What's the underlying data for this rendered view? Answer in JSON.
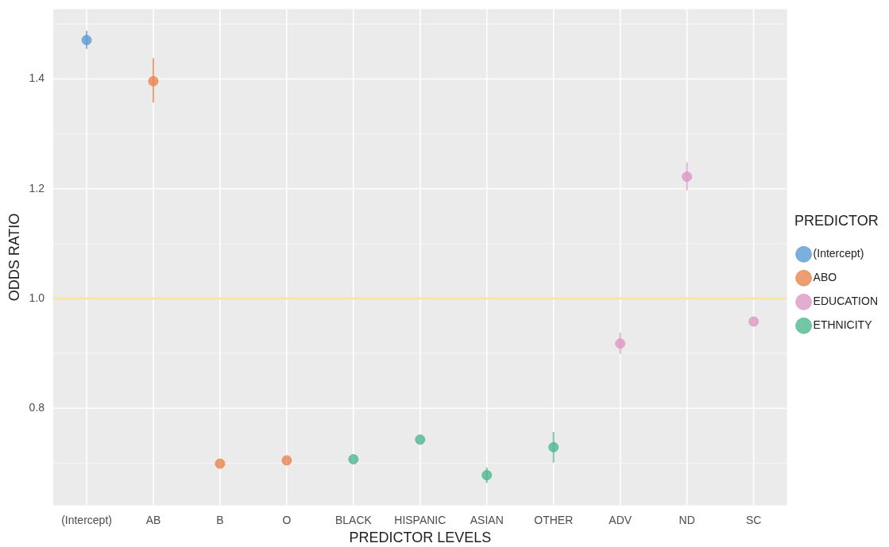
{
  "chart_data": {
    "type": "scatter",
    "xlabel": "PREDICTOR LEVELS",
    "ylabel": "ODDS RATIO",
    "legend_title": "PREDICTOR",
    "legend": "right",
    "grid": true,
    "marker": "circle",
    "categories": [
      "(Intercept)",
      "AB",
      "B",
      "O",
      "BLACK",
      "HISPANIC",
      "ASIAN",
      "OTHER",
      "ADV",
      "ND",
      "SC"
    ],
    "ylim": [
      0.623,
      1.5275
    ],
    "yticks": [
      {
        "value": 0.8,
        "label": "0.8"
      },
      {
        "value": 1,
        "label": "1.0"
      },
      {
        "value": 1.2,
        "label": "1.2"
      },
      {
        "value": 1.4,
        "label": "1.4"
      }
    ],
    "ref_lines": [
      {
        "axis": "y",
        "value": 1,
        "color": "#f6e8a8"
      }
    ],
    "series": [
      {
        "name": "(Intercept)",
        "color": "#5d9bd3",
        "x": [
          "(Intercept)"
        ],
        "values": [
          1.471
        ],
        "errors": [
          [
            1.455,
            1.488
          ]
        ]
      },
      {
        "name": "ABO",
        "color": "#e8854d",
        "x": [
          "AB",
          "B",
          "O"
        ],
        "values": [
          1.396,
          0.699,
          0.705
        ],
        "errors": [
          [
            1.357,
            1.438
          ],
          null,
          null
        ]
      },
      {
        "name": "EDUCATION",
        "color": "#dd99c4",
        "x": [
          "ADV",
          "ND",
          "SC"
        ],
        "values": [
          0.918,
          1.222,
          0.958
        ],
        "errors": [
          [
            0.899,
            0.938
          ],
          [
            1.197,
            1.248
          ],
          null
        ]
      },
      {
        "name": "ETHNICITY",
        "color": "#4fb890",
        "x": [
          "BLACK",
          "HISPANIC",
          "ASIAN",
          "OTHER"
        ],
        "values": [
          0.707,
          0.743,
          0.678,
          0.729
        ],
        "errors": [
          null,
          null,
          [
            0.664,
            0.692
          ],
          [
            0.701,
            0.757
          ]
        ]
      }
    ]
  }
}
